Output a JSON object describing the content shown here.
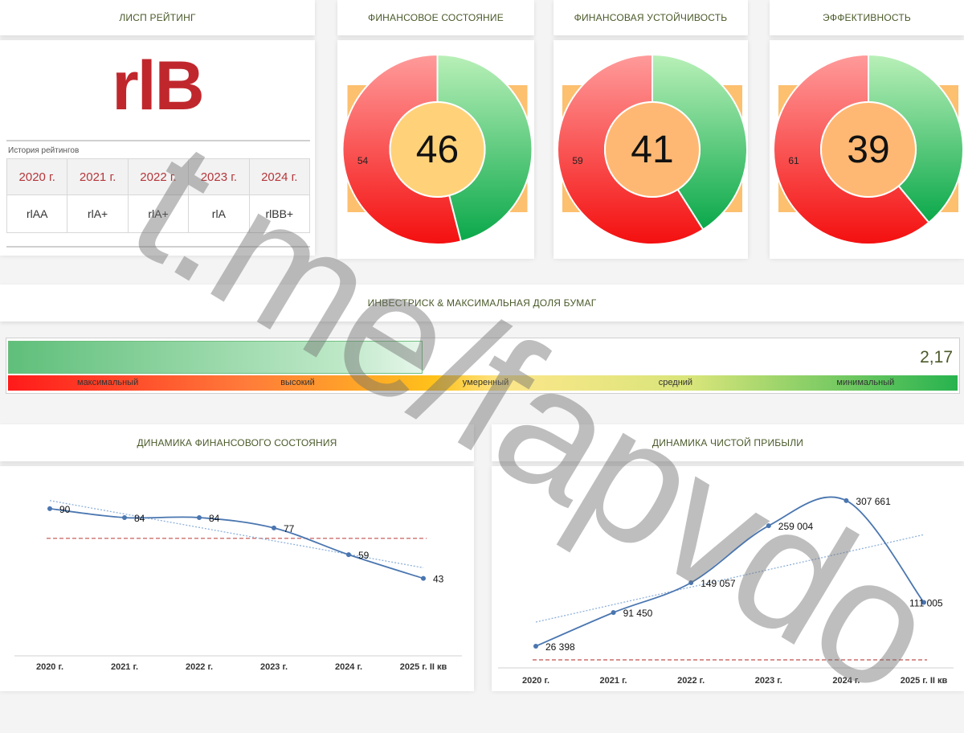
{
  "headers": {
    "rating": "ЛИСП РЕЙТИНГ",
    "fin_state": "ФИНАНСОВОЕ СОСТОЯНИЕ",
    "fin_stability": "ФИНАНСОВАЯ УСТОЙЧИВОСТЬ",
    "efficiency": "ЭФФЕКТИВНОСТЬ",
    "investrisk": "ИНВЕСТРИСК & МАКСИМАЛЬНАЯ ДОЛЯ БУМАГ",
    "fin_dynamics": "ДИНАМИКА ФИНАНСОВОГО СОСТОЯНИЯ",
    "profit_dynamics": "ДИНАМИКА ЧИСТОЙ ПРИБЫЛИ"
  },
  "rating": {
    "current": "rlB",
    "history_label": "История рейтингов",
    "history": [
      {
        "year": "2020 г.",
        "value": "rlAA"
      },
      {
        "year": "2021 г.",
        "value": "rlA+"
      },
      {
        "year": "2022 г.",
        "value": "rlA+"
      },
      {
        "year": "2023 г.",
        "value": "rlA"
      },
      {
        "year": "2024 г.",
        "value": "rlBB+"
      }
    ]
  },
  "risk": {
    "value_text": "2,17",
    "fill_fraction": 0.435,
    "scale_labels": [
      "максимальный",
      "высокий",
      "умеренный",
      "средний",
      "минимальный"
    ]
  },
  "watermark": "t.me/fapvdo",
  "colors": {
    "header_text": "#4a5a2a",
    "rating_red": "#c0272d",
    "line_blue": "#4a76b0",
    "threshold_red": "#c0504d"
  },
  "chart_data": [
    {
      "type": "pie",
      "title": "ФИНАНСОВОЕ СОСТОЯНИЕ",
      "center_label": "46",
      "values": [
        46,
        54
      ],
      "slice_labels": [
        "",
        "54"
      ],
      "center_color": "#ffd27a"
    },
    {
      "type": "pie",
      "title": "ФИНАНСОВАЯ УСТОЙЧИВОСТЬ",
      "center_label": "41",
      "values": [
        41,
        59
      ],
      "slice_labels": [
        "",
        "59"
      ],
      "center_color": "#ffb873"
    },
    {
      "type": "pie",
      "title": "ЭФФЕКТИВНОСТЬ",
      "center_label": "39",
      "values": [
        39,
        61
      ],
      "slice_labels": [
        "",
        "61"
      ],
      "center_color": "#ffb873"
    },
    {
      "type": "line",
      "title": "ДИНАМИКА ФИНАНСОВОГО СОСТОЯНИЯ",
      "categories": [
        "2020 г.",
        "2021 г.",
        "2022 г.",
        "2023 г.",
        "2024 г.",
        "2025 г. II кв"
      ],
      "values": [
        90,
        84,
        84,
        77,
        59,
        43
      ],
      "value_labels": [
        "90",
        "84",
        "84",
        "77",
        "59",
        "43"
      ],
      "threshold": 70,
      "trendline": true,
      "ylim": [
        0,
        110
      ]
    },
    {
      "type": "line",
      "title": "ДИНАМИКА ЧИСТОЙ ПРИБЫЛИ",
      "categories": [
        "2020 г.",
        "2021 г.",
        "2022 г.",
        "2023 г.",
        "2024 г.",
        "2025 г. II кв"
      ],
      "values": [
        26398,
        91450,
        149057,
        259004,
        307661,
        111005
      ],
      "value_labels": [
        "26 398",
        "91 450",
        "149 057",
        "259 004",
        "307 661",
        "111 005"
      ],
      "threshold": 0,
      "trendline": true,
      "ylim": [
        0,
        340000
      ]
    }
  ]
}
